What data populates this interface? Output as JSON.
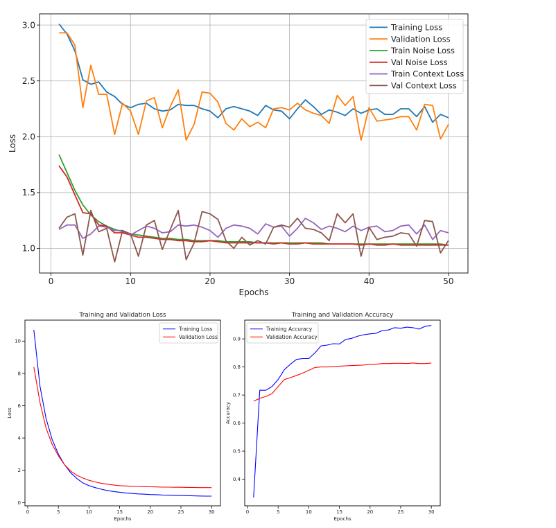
{
  "chart_data": [
    {
      "type": "line",
      "title": "",
      "xlabel": "Epochs",
      "ylabel": "Loss",
      "xlim": [
        -1.45,
        52.45
      ],
      "ylim": [
        0.78,
        3.1
      ],
      "xticks": [
        0,
        10,
        20,
        30,
        40,
        50
      ],
      "yticks": [
        1.0,
        1.5,
        2.0,
        2.5,
        3.0
      ],
      "ytick_labels": [
        "1.0",
        "1.5",
        "2.0",
        "2.5",
        "3.0"
      ],
      "grid": true,
      "legend_position": "top-right",
      "x": [
        1,
        2,
        3,
        4,
        5,
        6,
        7,
        8,
        9,
        10,
        11,
        12,
        13,
        14,
        15,
        16,
        17,
        18,
        19,
        20,
        21,
        22,
        23,
        24,
        25,
        26,
        27,
        28,
        29,
        30,
        31,
        32,
        33,
        34,
        35,
        36,
        37,
        38,
        39,
        40,
        41,
        42,
        43,
        44,
        45,
        46,
        47,
        48,
        49,
        50
      ],
      "series": [
        {
          "name": "Training Loss",
          "color": "#1f77b4",
          "values": [
            3.01,
            2.92,
            2.77,
            2.51,
            2.47,
            2.49,
            2.4,
            2.36,
            2.29,
            2.26,
            2.29,
            2.3,
            2.25,
            2.23,
            2.24,
            2.29,
            2.28,
            2.28,
            2.25,
            2.23,
            2.17,
            2.25,
            2.27,
            2.25,
            2.23,
            2.19,
            2.28,
            2.24,
            2.23,
            2.16,
            2.25,
            2.33,
            2.27,
            2.2,
            2.24,
            2.22,
            2.19,
            2.25,
            2.21,
            2.24,
            2.25,
            2.2,
            2.2,
            2.25,
            2.25,
            2.18,
            2.27,
            2.13,
            2.2,
            2.17
          ]
        },
        {
          "name": "Validation Loss",
          "color": "#ff7f0e",
          "values": [
            2.93,
            2.93,
            2.82,
            2.26,
            2.64,
            2.38,
            2.38,
            2.02,
            2.3,
            2.23,
            2.02,
            2.32,
            2.35,
            2.08,
            2.27,
            2.42,
            1.97,
            2.11,
            2.4,
            2.39,
            2.31,
            2.12,
            2.06,
            2.16,
            2.09,
            2.13,
            2.08,
            2.25,
            2.26,
            2.24,
            2.3,
            2.24,
            2.21,
            2.19,
            2.12,
            2.37,
            2.28,
            2.36,
            1.97,
            2.26,
            2.14,
            2.15,
            2.16,
            2.18,
            2.18,
            2.06,
            2.29,
            2.28,
            1.98,
            2.11
          ]
        },
        {
          "name": "Train Noise Loss",
          "color": "#2ca02c",
          "values": [
            1.84,
            1.68,
            1.52,
            1.39,
            1.3,
            1.24,
            1.2,
            1.17,
            1.15,
            1.13,
            1.12,
            1.11,
            1.1,
            1.09,
            1.09,
            1.08,
            1.08,
            1.07,
            1.07,
            1.07,
            1.07,
            1.06,
            1.06,
            1.06,
            1.06,
            1.05,
            1.05,
            1.05,
            1.05,
            1.05,
            1.05,
            1.05,
            1.05,
            1.05,
            1.04,
            1.04,
            1.04,
            1.04,
            1.04,
            1.04,
            1.04,
            1.04,
            1.04,
            1.04,
            1.04,
            1.04,
            1.04,
            1.04,
            1.04,
            1.03
          ]
        },
        {
          "name": "Val Noise Loss",
          "color": "#d62728",
          "values": [
            1.74,
            1.64,
            1.48,
            1.32,
            1.31,
            1.21,
            1.2,
            1.14,
            1.14,
            1.12,
            1.1,
            1.1,
            1.09,
            1.08,
            1.08,
            1.07,
            1.07,
            1.06,
            1.06,
            1.07,
            1.06,
            1.05,
            1.05,
            1.05,
            1.05,
            1.05,
            1.05,
            1.04,
            1.05,
            1.04,
            1.04,
            1.05,
            1.04,
            1.04,
            1.04,
            1.04,
            1.04,
            1.04,
            1.03,
            1.04,
            1.03,
            1.03,
            1.04,
            1.03,
            1.03,
            1.03,
            1.03,
            1.03,
            1.03,
            1.03
          ]
        },
        {
          "name": "Train Context Loss",
          "color": "#9467bd",
          "values": [
            1.17,
            1.21,
            1.21,
            1.09,
            1.13,
            1.2,
            1.19,
            1.16,
            1.16,
            1.12,
            1.16,
            1.2,
            1.18,
            1.14,
            1.15,
            1.21,
            1.2,
            1.21,
            1.19,
            1.16,
            1.1,
            1.18,
            1.21,
            1.2,
            1.18,
            1.13,
            1.22,
            1.19,
            1.2,
            1.11,
            1.18,
            1.27,
            1.23,
            1.17,
            1.2,
            1.18,
            1.15,
            1.2,
            1.16,
            1.19,
            1.2,
            1.15,
            1.16,
            1.2,
            1.21,
            1.13,
            1.21,
            1.08,
            1.16,
            1.14
          ]
        },
        {
          "name": "Val Context Loss",
          "color": "#8c564b",
          "values": [
            1.18,
            1.28,
            1.31,
            0.94,
            1.34,
            1.15,
            1.18,
            0.88,
            1.16,
            1.13,
            0.93,
            1.21,
            1.25,
            0.99,
            1.17,
            1.34,
            0.9,
            1.05,
            1.33,
            1.31,
            1.26,
            1.07,
            1.0,
            1.1,
            1.03,
            1.07,
            1.04,
            1.19,
            1.21,
            1.19,
            1.27,
            1.18,
            1.17,
            1.14,
            1.07,
            1.31,
            1.23,
            1.31,
            0.93,
            1.19,
            1.08,
            1.1,
            1.11,
            1.14,
            1.13,
            1.02,
            1.25,
            1.24,
            0.96,
            1.07
          ]
        }
      ]
    },
    {
      "type": "line",
      "title": "Training and Validation Loss",
      "xlabel": "Epochs",
      "ylabel": "Loss",
      "xlim": [
        -0.45,
        31.45
      ],
      "ylim": [
        -0.2,
        11.3
      ],
      "xticks": [
        0,
        5,
        10,
        15,
        20,
        25,
        30
      ],
      "yticks": [
        0,
        2,
        4,
        6,
        8,
        10
      ],
      "ytick_labels": [
        "0",
        "2",
        "4",
        "6",
        "8",
        "10"
      ],
      "grid": false,
      "legend_position": "top-right",
      "x": [
        1,
        2,
        3,
        4,
        5,
        6,
        7,
        8,
        9,
        10,
        11,
        12,
        13,
        14,
        15,
        16,
        17,
        18,
        19,
        20,
        21,
        22,
        23,
        24,
        25,
        26,
        27,
        28,
        29,
        30
      ],
      "series": [
        {
          "name": "Training Loss",
          "color": "#0000ff",
          "values": [
            10.7,
            7.2,
            5.2,
            3.9,
            3.0,
            2.35,
            1.85,
            1.5,
            1.22,
            1.05,
            0.93,
            0.83,
            0.75,
            0.69,
            0.64,
            0.6,
            0.57,
            0.54,
            0.52,
            0.5,
            0.49,
            0.47,
            0.46,
            0.45,
            0.44,
            0.43,
            0.42,
            0.41,
            0.4,
            0.4
          ]
        },
        {
          "name": "Validation Loss",
          "color": "#ff0000",
          "values": [
            8.4,
            6.2,
            4.6,
            3.6,
            2.9,
            2.35,
            1.95,
            1.7,
            1.52,
            1.38,
            1.28,
            1.2,
            1.14,
            1.09,
            1.05,
            1.03,
            1.01,
            1.0,
            0.99,
            0.98,
            0.97,
            0.96,
            0.96,
            0.95,
            0.95,
            0.94,
            0.94,
            0.93,
            0.93,
            0.93
          ]
        }
      ]
    },
    {
      "type": "line",
      "title": "Training and Validation Accuracy",
      "xlabel": "Epochs",
      "ylabel": "Accuracy",
      "xlim": [
        -0.45,
        31.45
      ],
      "ylim": [
        0.305,
        0.967
      ],
      "xticks": [
        0,
        5,
        10,
        15,
        20,
        25,
        30
      ],
      "yticks": [
        0.4,
        0.5,
        0.6,
        0.7,
        0.8,
        0.9
      ],
      "ytick_labels": [
        "0.4",
        "0.5",
        "0.6",
        "0.7",
        "0.8",
        "0.9"
      ],
      "grid": false,
      "legend_position": "top-left",
      "x": [
        1,
        2,
        3,
        4,
        5,
        6,
        7,
        8,
        9,
        10,
        11,
        12,
        13,
        14,
        15,
        16,
        17,
        18,
        19,
        20,
        21,
        22,
        23,
        24,
        25,
        26,
        27,
        28,
        29,
        30
      ],
      "series": [
        {
          "name": "Training Accuracy",
          "color": "#0000ff",
          "values": [
            0.335,
            0.717,
            0.717,
            0.73,
            0.755,
            0.79,
            0.81,
            0.827,
            0.83,
            0.83,
            0.85,
            0.875,
            0.878,
            0.883,
            0.882,
            0.898,
            0.902,
            0.91,
            0.915,
            0.918,
            0.92,
            0.93,
            0.932,
            0.94,
            0.938,
            0.942,
            0.94,
            0.935,
            0.945,
            0.948
          ]
        },
        {
          "name": "Validation Accuracy",
          "color": "#ff0000",
          "values": [
            0.678,
            0.688,
            0.695,
            0.705,
            0.73,
            0.755,
            0.762,
            0.77,
            0.778,
            0.788,
            0.798,
            0.8,
            0.8,
            0.801,
            0.803,
            0.804,
            0.805,
            0.806,
            0.807,
            0.81,
            0.81,
            0.812,
            0.812,
            0.813,
            0.813,
            0.812,
            0.814,
            0.812,
            0.812,
            0.814
          ]
        }
      ]
    }
  ]
}
